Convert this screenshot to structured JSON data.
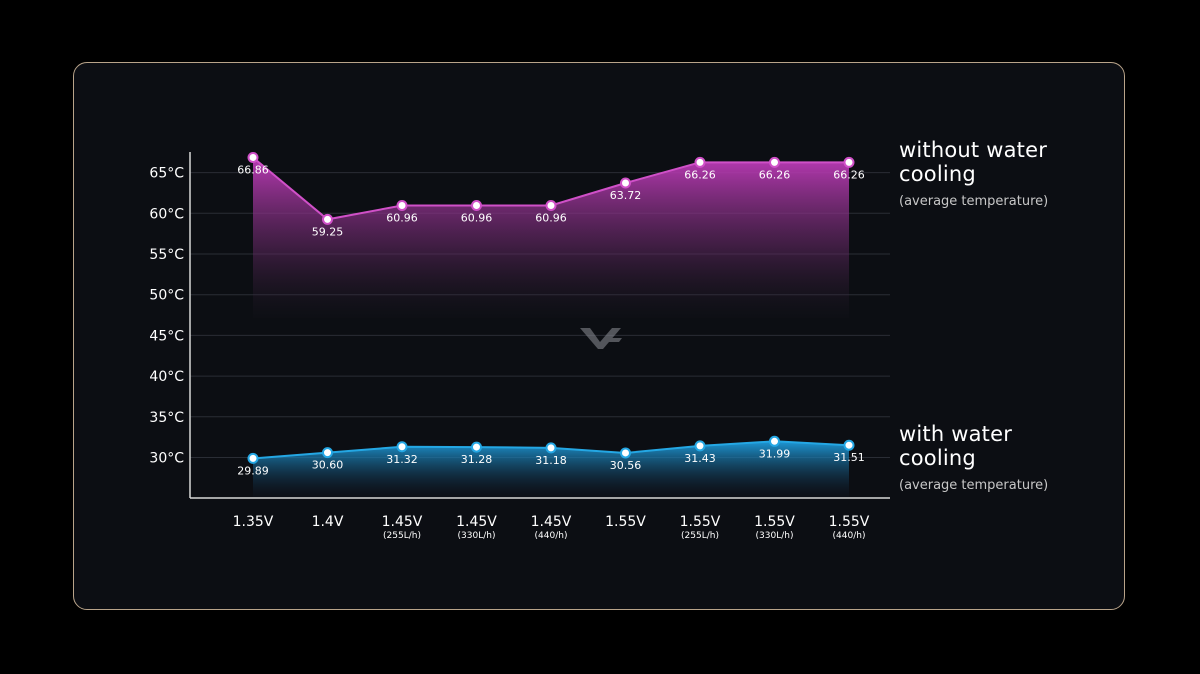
{
  "colors": {
    "background": "#000000",
    "panel": "#0c0e13",
    "panel_border": "#b9a48a",
    "series_without": "#d050c8",
    "series_with": "#24a7e4",
    "grid": "#2a2d35",
    "text": "#ffffff"
  },
  "watermark_icon": "vc-logo-icon",
  "chart_data": {
    "type": "area",
    "categories": [
      {
        "main": "1.35V",
        "sub": ""
      },
      {
        "main": "1.4V",
        "sub": ""
      },
      {
        "main": "1.45V",
        "sub": "(255L/h)"
      },
      {
        "main": "1.45V",
        "sub": "(330L/h)"
      },
      {
        "main": "1.45V",
        "sub": "(440/h)"
      },
      {
        "main": "1.55V",
        "sub": ""
      },
      {
        "main": "1.55V",
        "sub": "(255L/h)"
      },
      {
        "main": "1.55V",
        "sub": "(330L/h)"
      },
      {
        "main": "1.55V",
        "sub": "(440/h)"
      }
    ],
    "y_ticks": [
      "30°C",
      "35°C",
      "40°C",
      "45°C",
      "50°C",
      "55°C",
      "60°C",
      "65°C"
    ],
    "y_tick_values": [
      30,
      35,
      40,
      45,
      50,
      55,
      60,
      65
    ],
    "ylim": [
      25,
      67
    ],
    "grid": true,
    "series": [
      {
        "name": "without water cooling",
        "subtitle": "(average temperature)",
        "values": [
          66.86,
          59.25,
          60.96,
          60.96,
          60.96,
          63.72,
          66.26,
          66.26,
          66.26
        ],
        "labels": [
          "66.86",
          "59.25",
          "60.96",
          "60.96",
          "60.96",
          "63.72",
          "66.26",
          "66.26",
          "66.26"
        ]
      },
      {
        "name": "with water cooling",
        "subtitle": "(average temperature)",
        "values": [
          29.89,
          30.6,
          31.32,
          31.28,
          31.18,
          30.56,
          31.43,
          31.99,
          31.51
        ],
        "labels": [
          "29.89",
          "30.60",
          "31.32",
          "31.28",
          "31.18",
          "30.56",
          "31.43",
          "31.99",
          "31.51"
        ]
      }
    ],
    "legend_placement": "right"
  },
  "legend": {
    "top": {
      "title_line1": "without water",
      "title_line2": "cooling",
      "subtitle": "(average temperature)"
    },
    "bottom": {
      "title_line1": "with water",
      "title_line2": "cooling",
      "subtitle": "(average temperature)"
    }
  }
}
